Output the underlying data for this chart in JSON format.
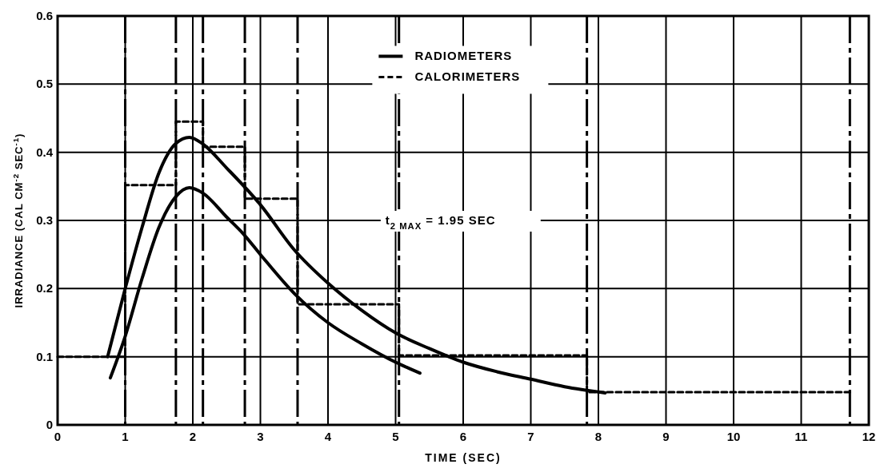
{
  "chart_data": {
    "type": "line",
    "xlabel": "TIME (SEC)",
    "ylabel": "IRRADIANCE (CAL CM$^{-2}$ SEC$^{-1}$)",
    "xlim": [
      0,
      12
    ],
    "xticks": [
      0,
      1,
      2,
      3,
      4,
      5,
      6,
      7,
      8,
      9,
      10,
      11,
      12
    ],
    "ylim": [
      0,
      0.6
    ],
    "yticks": [
      0,
      0.1,
      0.2,
      0.3,
      0.4,
      0.5,
      0.6
    ],
    "grid": true,
    "legend": "top",
    "series": [
      {
        "name": "RADIOMETERS",
        "line_style": "solid",
        "color": "#000000",
        "x": [
          0.74,
          1,
          1.25,
          1.5,
          1.75,
          1.95,
          2.15,
          2.5,
          3,
          3.5,
          4,
          4.5,
          5,
          5.5,
          6,
          6.5,
          7,
          7.5,
          8.1
        ],
        "values": [
          0.1,
          0.2,
          0.29,
          0.37,
          0.413,
          0.422,
          0.412,
          0.377,
          0.323,
          0.257,
          0.208,
          0.168,
          0.135,
          0.112,
          0.092,
          0.078,
          0.067,
          0.056,
          0.047
        ]
      },
      {
        "line_style": "solid",
        "color": "#000000",
        "x": [
          0.78,
          1,
          1.25,
          1.5,
          1.75,
          1.95,
          2.15,
          2.5,
          2.75,
          3,
          3.5,
          4,
          4.5,
          5,
          5.36
        ],
        "values": [
          0.069,
          0.13,
          0.215,
          0.29,
          0.335,
          0.348,
          0.34,
          0.305,
          0.28,
          0.25,
          0.193,
          0.15,
          0.119,
          0.092,
          0.076
        ]
      },
      {
        "name": "CALORIMETERS",
        "type": "step",
        "line_style": "dashed",
        "color": "#000000",
        "x": [
          0,
          1,
          1.75,
          2.15,
          2.77,
          3.55,
          5.05,
          7.83,
          11.72
        ],
        "values": [
          0.1,
          0.352,
          0.445,
          0.408,
          0.332,
          0.177,
          0.102,
          0.048,
          0.048
        ]
      }
    ],
    "ref_lines": [
      {
        "axis": "x",
        "value": 1,
        "line_style": "dashed",
        "color": "#000000"
      },
      {
        "axis": "x",
        "value": 1.75,
        "line_style": "dashed",
        "color": "#000000"
      },
      {
        "axis": "x",
        "value": 2.15,
        "line_style": "dashed",
        "color": "#000000"
      },
      {
        "axis": "x",
        "value": 2.77,
        "line_style": "dashed",
        "color": "#000000"
      },
      {
        "axis": "x",
        "value": 3.55,
        "line_style": "dashed",
        "color": "#000000"
      },
      {
        "axis": "x",
        "value": 5.05,
        "line_style": "dashed",
        "color": "#000000"
      },
      {
        "axis": "x",
        "value": 7.83,
        "line_style": "dashed",
        "color": "#000000"
      },
      {
        "axis": "x",
        "value": 11.72,
        "line_style": "dashed",
        "color": "#000000"
      }
    ],
    "annotations": [
      "t$_{2 MAX}$ = 1.95 SEC"
    ]
  }
}
